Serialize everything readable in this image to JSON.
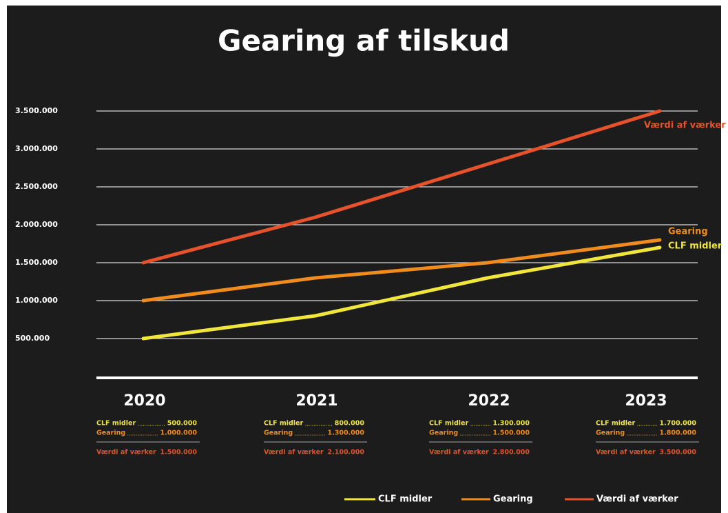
{
  "chart_data": {
    "type": "line",
    "title": "Gearing af tilskud",
    "categories": [
      "2020",
      "2021",
      "2022",
      "2023"
    ],
    "ylim": [
      0,
      3500000
    ],
    "yticks": [
      {
        "value": 500000,
        "label": "500.000"
      },
      {
        "value": 1000000,
        "label": "1.000.000"
      },
      {
        "value": 1500000,
        "label": "1.500.000"
      },
      {
        "value": 2000000,
        "label": "2.000.000"
      },
      {
        "value": 2500000,
        "label": "2.500.000"
      },
      {
        "value": 3000000,
        "label": "3.000.000"
      },
      {
        "value": 3500000,
        "label": "3.500.000"
      }
    ],
    "grid": true,
    "legend": "bottom",
    "series": [
      {
        "name": "CLF midler",
        "color": "#f0e63c",
        "values": [
          500000,
          800000,
          1300000,
          1700000
        ],
        "value_labels": [
          "500.000",
          "800.000",
          "1.300.000",
          "1.700.000"
        ]
      },
      {
        "name": "Gearing",
        "color": "#f08c1e",
        "values": [
          1000000,
          1300000,
          1500000,
          1800000
        ],
        "value_labels": [
          "1.000.000",
          "1.300.000",
          "1.500.000",
          "1.800.000"
        ]
      },
      {
        "name": "Værdi af værker",
        "color": "#e5522b",
        "values": [
          1500000,
          2100000,
          2800000,
          3500000
        ],
        "value_labels": [
          "1.500.000",
          "2.100.000",
          "2.800.000",
          "3.500.000"
        ]
      }
    ]
  }
}
